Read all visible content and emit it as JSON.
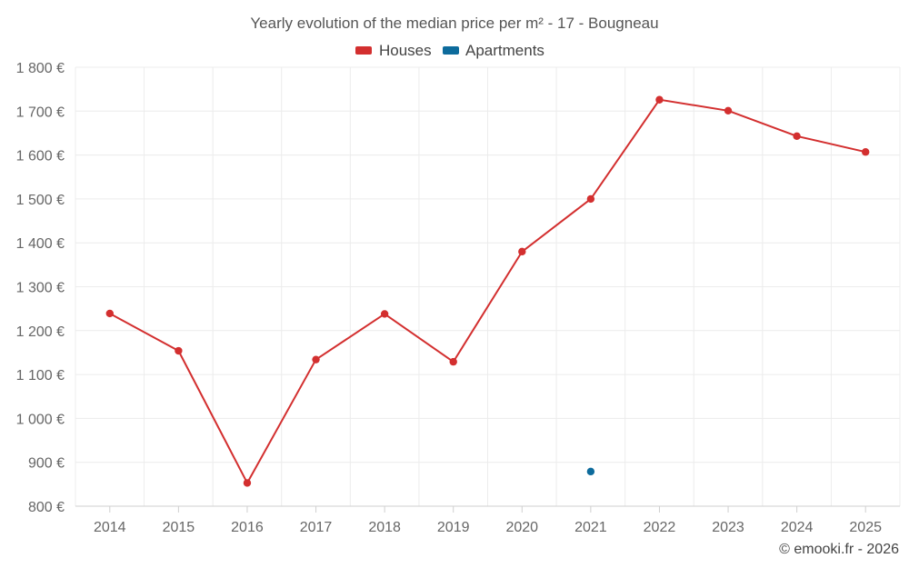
{
  "chart_data": {
    "type": "line",
    "title": "Yearly evolution of the median price per m² - 17 - Bougneau",
    "categories": [
      "2014",
      "2015",
      "2016",
      "2017",
      "2018",
      "2019",
      "2020",
      "2021",
      "2022",
      "2023",
      "2024",
      "2025"
    ],
    "series": [
      {
        "name": "Houses",
        "color": "#d32f2f",
        "values": [
          1239,
          1154,
          853,
          1134,
          1238,
          1129,
          1380,
          1500,
          1726,
          1701,
          1643,
          1607
        ]
      },
      {
        "name": "Apartments",
        "color": "#0d6b9c",
        "values": [
          null,
          null,
          null,
          null,
          null,
          null,
          null,
          879,
          null,
          null,
          null,
          null
        ]
      }
    ],
    "ylim": [
      800,
      1800
    ],
    "yticks": [
      800,
      900,
      1000,
      1100,
      1200,
      1300,
      1400,
      1500,
      1600,
      1700,
      1800
    ],
    "ytick_labels": [
      "800 €",
      "900 €",
      "1 000 €",
      "1 100 €",
      "1 200 €",
      "1 300 €",
      "1 400 €",
      "1 500 €",
      "1 600 €",
      "1 700 €",
      "1 800 €"
    ],
    "xlabel": "",
    "ylabel": "",
    "grid": true,
    "legend": "top-center"
  },
  "credit": "© emooki.fr - 2026"
}
